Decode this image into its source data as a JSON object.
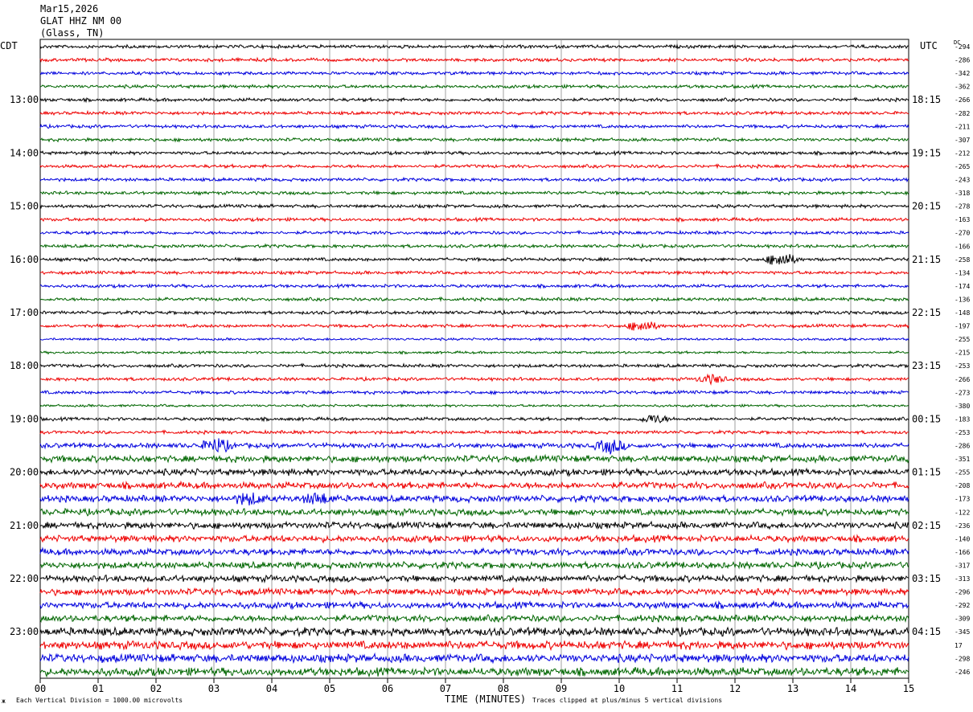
{
  "header": {
    "date": "Mar15,2026",
    "station": "GLAT HHZ NM 00",
    "location": "(Glass, TN)"
  },
  "left_axis_label": "CDT",
  "right_axis_label": "UTC",
  "dc_label": "DC",
  "footer": {
    "scale_note": "Each Vertical Division = 1000.00 microvolts",
    "xlabel": "TIME (MINUTES)",
    "clip_note": "Traces clipped at plus/minus 5 vertical divisions"
  },
  "chart_data": {
    "type": "line",
    "title": "",
    "xlabel": "TIME (MINUTES)",
    "ylabel": "",
    "xlim": [
      0,
      15
    ],
    "x_ticks": [
      "00",
      "01",
      "02",
      "03",
      "04",
      "05",
      "06",
      "07",
      "08",
      "09",
      "10",
      "11",
      "12",
      "13",
      "14",
      "15"
    ],
    "trace_colors": [
      "#000000",
      "#ee0000",
      "#0000dd",
      "#006600"
    ],
    "left_time_labels": [
      {
        "trace": 4,
        "label": "13:00"
      },
      {
        "trace": 8,
        "label": "14:00"
      },
      {
        "trace": 12,
        "label": "15:00"
      },
      {
        "trace": 16,
        "label": "16:00"
      },
      {
        "trace": 20,
        "label": "17:00"
      },
      {
        "trace": 24,
        "label": "18:00"
      },
      {
        "trace": 28,
        "label": "19:00"
      },
      {
        "trace": 32,
        "label": "20:00"
      },
      {
        "trace": 36,
        "label": "21:00"
      },
      {
        "trace": 40,
        "label": "22:00"
      },
      {
        "trace": 44,
        "label": "23:00"
      }
    ],
    "right_time_labels": [
      {
        "trace": 4,
        "label": "18:15"
      },
      {
        "trace": 8,
        "label": "19:15"
      },
      {
        "trace": 12,
        "label": "20:15"
      },
      {
        "trace": 16,
        "label": "21:15"
      },
      {
        "trace": 20,
        "label": "22:15"
      },
      {
        "trace": 24,
        "label": "23:15"
      },
      {
        "trace": 28,
        "label": "00:15"
      },
      {
        "trace": 32,
        "label": "01:15"
      },
      {
        "trace": 36,
        "label": "02:15"
      },
      {
        "trace": 40,
        "label": "03:15"
      },
      {
        "trace": 44,
        "label": "04:15"
      }
    ],
    "dc_offsets": [
      "-294",
      "-286",
      "-342",
      "-362",
      "-266",
      "-282",
      "-211",
      "-307",
      "-212",
      "-265",
      "-243",
      "-318",
      "-278",
      "-163",
      "-270",
      "-166",
      "-258",
      "-134",
      "-174",
      "-136",
      "-148",
      "-197",
      "-255",
      "-215",
      "-253",
      "-266",
      "-273",
      "-380",
      "-183",
      "-253",
      "-286",
      "-351",
      "-255",
      "-208",
      "-173",
      "-122",
      "-236",
      "-140",
      "-166",
      "-317",
      "-313",
      "-296",
      "-292",
      "-309",
      "-345",
      "17",
      "-298",
      "-246"
    ],
    "trace_amplitude": [
      2,
      2,
      2,
      2,
      2,
      2,
      2,
      2,
      2,
      2,
      2,
      2,
      2,
      2,
      2,
      2,
      2,
      2,
      2,
      2,
      2,
      2,
      1.5,
      1.5,
      2,
      2,
      2,
      1.5,
      2,
      2,
      3,
      4,
      4,
      4,
      4,
      4,
      4,
      4,
      4,
      4,
      4,
      4,
      4,
      4,
      5,
      5,
      5,
      5
    ],
    "events": [
      {
        "trace": 16,
        "minute": 12.8,
        "amplitude": 9
      },
      {
        "trace": 21,
        "minute": 10.4,
        "amplitude": 7
      },
      {
        "trace": 25,
        "minute": 11.6,
        "amplitude": 5
      },
      {
        "trace": 28,
        "minute": 10.6,
        "amplitude": 5
      },
      {
        "trace": 30,
        "minute": 3.05,
        "amplitude": 8
      },
      {
        "trace": 30,
        "minute": 9.85,
        "amplitude": 8
      },
      {
        "trace": 34,
        "minute": 3.6,
        "amplitude": 6
      },
      {
        "trace": 34,
        "minute": 4.8,
        "amplitude": 6
      }
    ],
    "grid": true
  }
}
